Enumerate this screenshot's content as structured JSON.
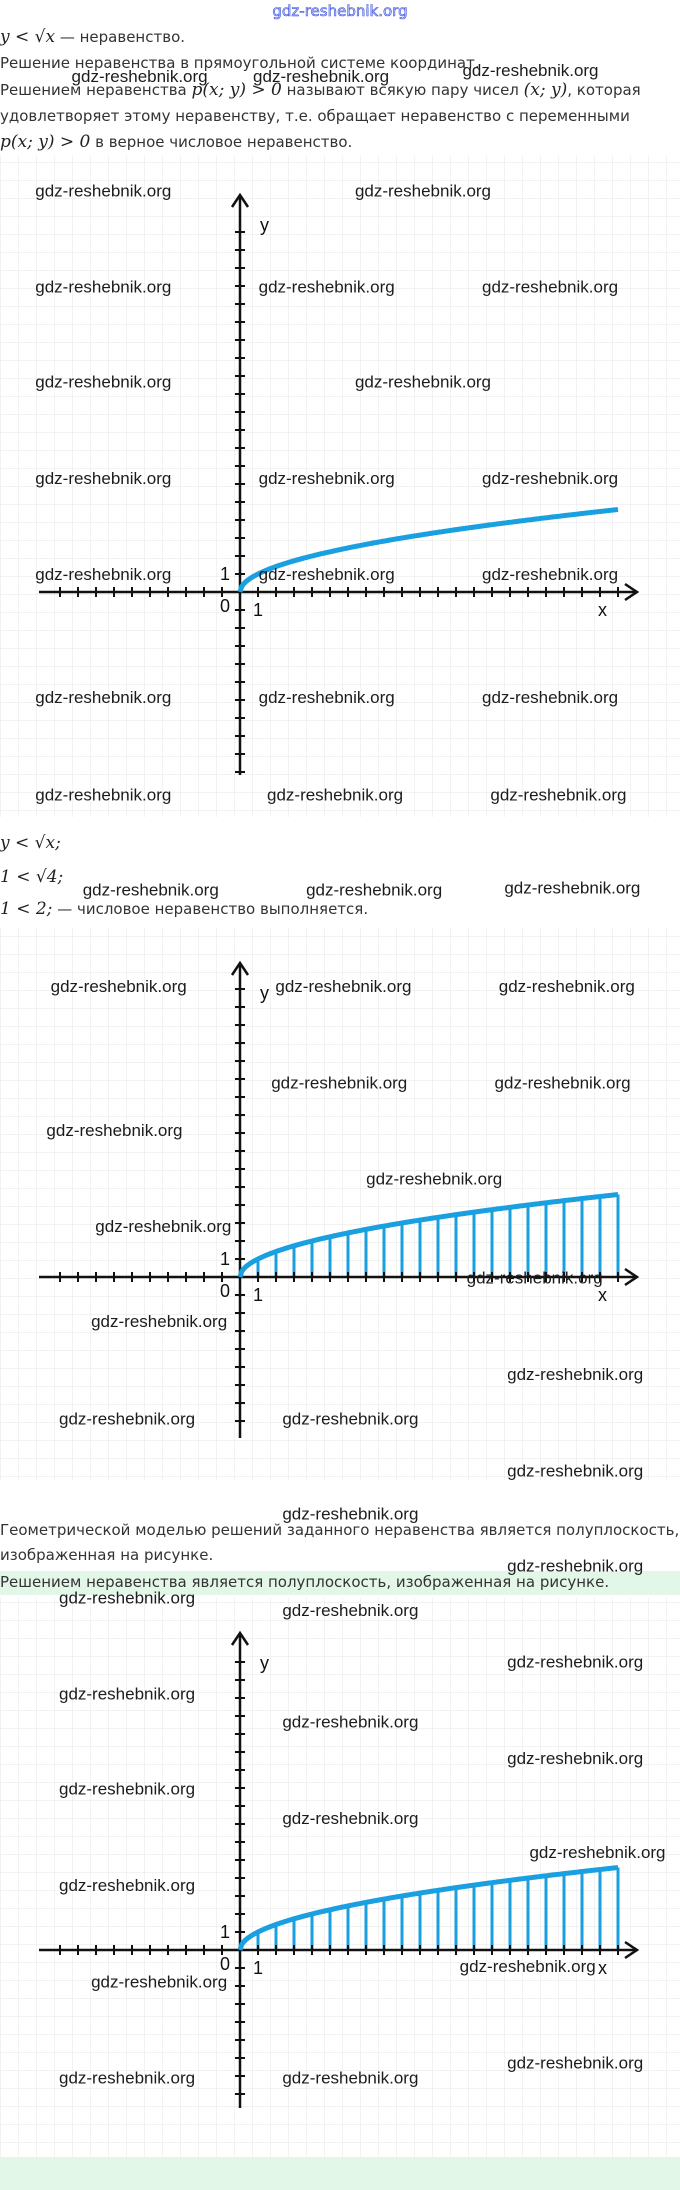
{
  "site": "gdz-reshebnik.org",
  "watermark": "gdz-reshebnik.org",
  "intro": [
    [
      {
        "math": "y < √x"
      },
      " — неравенство."
    ],
    [
      "Решение неравенства в прямоугольной системе координат."
    ],
    [
      "Решением неравенства ",
      {
        "math": "p(x; y) > 0"
      },
      " называют всякую пару чисел ",
      {
        "math": "(x; y)"
      },
      ", которая"
    ],
    [
      "удовлетворяет этому неравенству, т.е. обращает неравенство с переменными"
    ],
    [
      {
        "math": "p(x; y) > 0"
      },
      " в верное числовое неравенство."
    ]
  ],
  "check": [
    [
      {
        "math": "y < √x;"
      }
    ],
    [
      {
        "math": "1 < √4;"
      }
    ],
    [
      {
        "math": "1 < 2;"
      },
      " — числовое неравенство выполняется."
    ]
  ],
  "conclusion": [
    [
      "Геометрической моделью решений заданного неравенства является полуплоскость,"
    ],
    [
      "изображенная на рисунке."
    ]
  ],
  "answer": "Решением неравенства является полуплоскость, изображенная на рисунке.",
  "graph": {
    "y_label": "y",
    "x_label": "x",
    "origin_label": "0",
    "unit_label": "1"
  }
}
